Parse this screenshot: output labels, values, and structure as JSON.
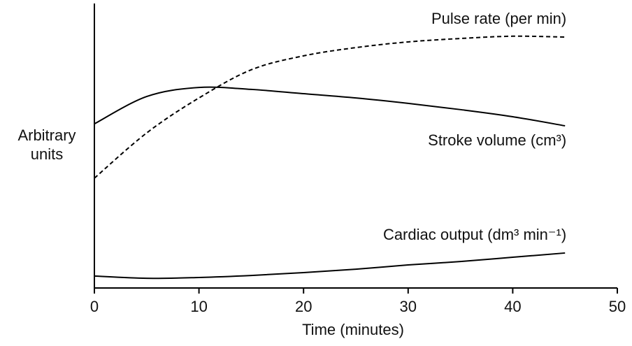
{
  "chart_data": {
    "type": "line",
    "xlabel": "Time (minutes)",
    "ylabel": [
      "Arbitrary",
      "units"
    ],
    "x": [
      0,
      5,
      10,
      15,
      20,
      25,
      30,
      35,
      40,
      45
    ],
    "xlim": [
      0,
      50
    ],
    "xticks": [
      0,
      10,
      20,
      30,
      40,
      50
    ],
    "ylim": [
      0,
      100
    ],
    "series": [
      {
        "name": "Pulse rate (per min)",
        "color": "#000000",
        "style": "dashed",
        "values": [
          38.6,
          54.5,
          66.8,
          76.7,
          81.6,
          84.5,
          86.5,
          87.7,
          88.5,
          88.2
        ]
      },
      {
        "name": "Stroke volume (cm³)",
        "color": "#000000",
        "style": "solid",
        "values": [
          57.7,
          67.3,
          70.5,
          69.8,
          68.3,
          66.8,
          64.9,
          62.7,
          60.2,
          57.0
        ]
      },
      {
        "name": "Cardiac output (dm³ min⁻¹)",
        "color": "#000000",
        "style": "solid",
        "values": [
          4.2,
          3.4,
          3.7,
          4.4,
          5.4,
          6.6,
          8.1,
          9.3,
          10.8,
          12.3
        ]
      }
    ]
  }
}
